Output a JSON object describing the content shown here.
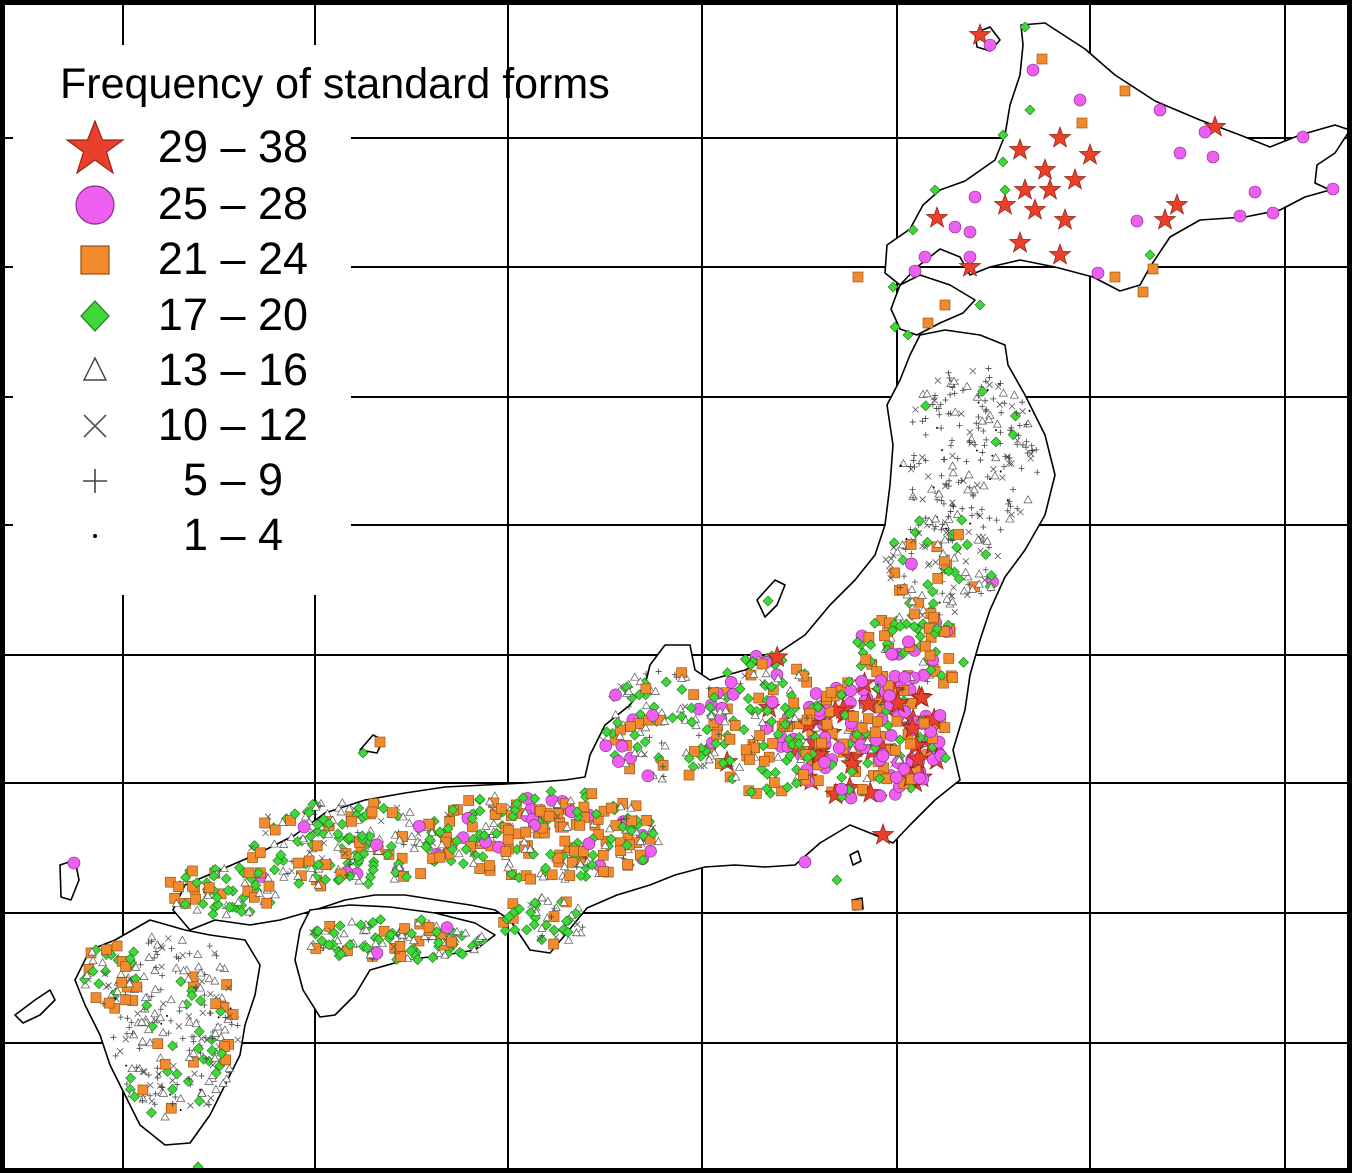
{
  "legend": {
    "title": "Frequency of standard forms",
    "classes": [
      {
        "range": "29 – 38",
        "symbol": "star",
        "color": "#e8402a",
        "icon": "red-star-icon"
      },
      {
        "range": "25 – 28",
        "symbol": "circle",
        "color": "#ee5ef0",
        "icon": "pink-circle-icon"
      },
      {
        "range": "21 – 24",
        "symbol": "square",
        "color": "#f28a2e",
        "icon": "orange-square-icon"
      },
      {
        "range": "17 – 20",
        "symbol": "diamond",
        "color": "#3fd83a",
        "icon": "green-diamond-icon"
      },
      {
        "range": "13 – 16",
        "symbol": "triangle",
        "color": "#ffffff",
        "icon": "triangle-icon"
      },
      {
        "range": "10 – 12",
        "symbol": "cross",
        "color": "#555555",
        "icon": "x-cross-icon"
      },
      {
        "range": "5 – 9",
        "symbol": "plus",
        "color": "#444444",
        "icon": "plus-icon"
      },
      {
        "range": "1 – 4",
        "symbol": "dot",
        "color": "#000000",
        "icon": "dot-icon"
      }
    ]
  },
  "map": {
    "subject": "Japan",
    "grid": true,
    "coastline_color": "#000000"
  }
}
